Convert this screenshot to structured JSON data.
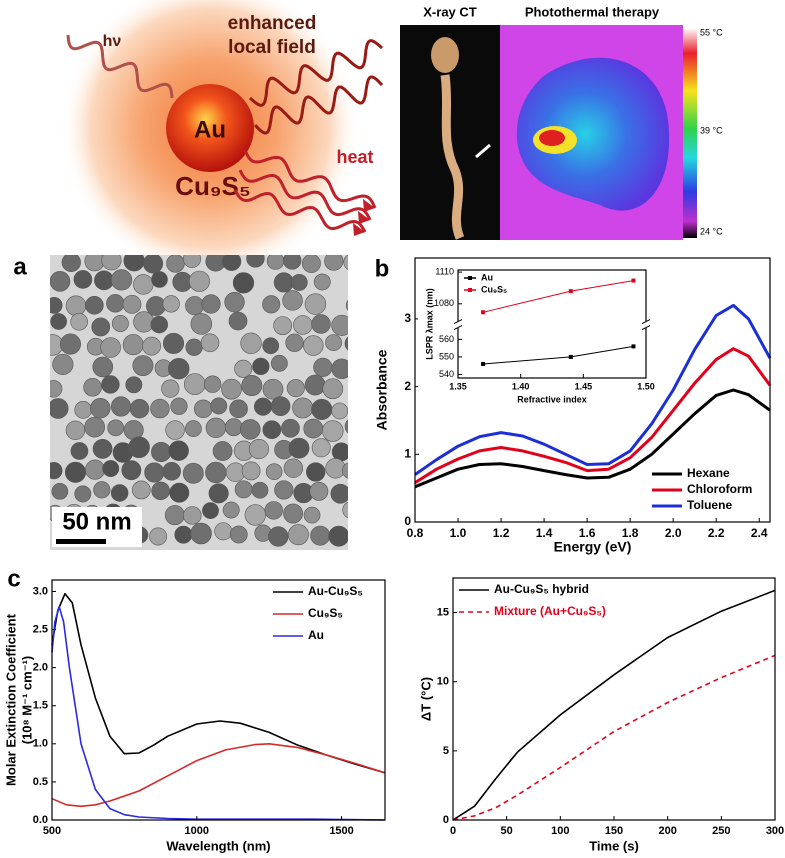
{
  "schematic": {
    "photon": "hν",
    "field_label": [
      "enhanced",
      "local field"
    ],
    "core": "Au",
    "shell": "Cu₉S₅",
    "heat": "heat"
  },
  "imaging": {
    "ct_title": "X-ray CT",
    "ptt_title": "Photothermal therapy",
    "colorbar_labels": [
      "55 °C",
      "39 °C",
      "24 °C"
    ]
  },
  "panel_labels": [
    "a",
    "b",
    "c"
  ],
  "tem_scale_bar": "50 nm",
  "chart_data": [
    {
      "type": "line",
      "x_label": "Energy (eV)",
      "y_label": [
        "Absorbance"
      ],
      "x": [
        0.8,
        0.9,
        1.0,
        1.1,
        1.2,
        1.3,
        1.4,
        1.5,
        1.6,
        1.7,
        1.8,
        1.9,
        2.0,
        2.1,
        2.2,
        2.28,
        2.35,
        2.45
      ],
      "series": [
        {
          "name": "Hexane",
          "color": "#000000",
          "values": [
            0.52,
            0.65,
            0.78,
            0.85,
            0.86,
            0.82,
            0.76,
            0.7,
            0.65,
            0.66,
            0.78,
            1.0,
            1.3,
            1.6,
            1.87,
            1.95,
            1.88,
            1.65
          ]
        },
        {
          "name": "Chloroform",
          "color": "#e3001b",
          "values": [
            0.58,
            0.78,
            0.93,
            1.05,
            1.1,
            1.05,
            0.97,
            0.88,
            0.76,
            0.78,
            0.95,
            1.25,
            1.65,
            2.05,
            2.4,
            2.56,
            2.45,
            2.02
          ]
        },
        {
          "name": "Toluene",
          "color": "#1c2fd6",
          "values": [
            0.7,
            0.92,
            1.12,
            1.26,
            1.32,
            1.27,
            1.15,
            1.0,
            0.85,
            0.86,
            1.05,
            1.45,
            1.95,
            2.55,
            3.05,
            3.2,
            3.0,
            2.42
          ]
        }
      ],
      "xlim": [
        0.8,
        2.45
      ],
      "xticks": [
        0.8,
        {
          "value": 1,
          "label": "1.0"
        },
        1.2,
        1.4,
        1.6,
        1.8,
        {
          "value": 2,
          "label": "2.0"
        },
        2.2,
        2.4
      ],
      "ylim": [
        0,
        3.9
      ],
      "yticks": [
        0,
        1,
        2,
        3
      ],
      "legend": "lower right",
      "line_width": 3
    },
    {
      "type": "line",
      "x_label": "Refractive index",
      "y_label": [
        "LSPR λmax (nm)"
      ],
      "markers": true,
      "x": [
        1.37,
        1.44,
        1.49
      ],
      "series": [
        {
          "name": "Au",
          "color": "#000000",
          "values": [
            546,
            550,
            556
          ]
        },
        {
          "name": "Cu₉S₅",
          "color": "#e3001b",
          "values": [
            1072,
            1092,
            1102
          ]
        }
      ],
      "xlim": [
        1.35,
        1.5
      ],
      "xticks": [
        1.35,
        {
          "value": 1.4,
          "label": "1.40"
        },
        1.45,
        {
          "value": 1.5,
          "label": "1.50"
        }
      ],
      "ylim": [
        538,
        1112
      ],
      "y_break": [
        565,
        1066
      ],
      "yticks": [
        540,
        550,
        560,
        1080,
        1110
      ],
      "legend": "upper left",
      "line_width": 1
    },
    {
      "type": "line",
      "x_label": "Wavelength (nm)",
      "y_label": [
        "Molar Extinction Coefficient",
        "(10⁸ M⁻¹ cm⁻¹)"
      ],
      "series": [
        {
          "name": "Au-Cu₉S₅",
          "color": "#000000",
          "x": [
            500,
            520,
            545,
            570,
            600,
            650,
            700,
            750,
            800,
            850,
            900,
            1000,
            1080,
            1150,
            1250,
            1350,
            1450,
            1550,
            1650
          ],
          "values": [
            2.3,
            2.75,
            2.97,
            2.85,
            2.3,
            1.6,
            1.1,
            0.87,
            0.88,
            0.98,
            1.1,
            1.26,
            1.3,
            1.27,
            1.15,
            0.98,
            0.85,
            0.73,
            0.62
          ]
        },
        {
          "name": "Cu₉S₅",
          "color": "#d42a2a",
          "x": [
            500,
            550,
            600,
            650,
            700,
            800,
            900,
            1000,
            1100,
            1200,
            1250,
            1350,
            1450,
            1550,
            1650
          ],
          "values": [
            0.28,
            0.2,
            0.18,
            0.2,
            0.25,
            0.38,
            0.58,
            0.78,
            0.92,
            0.99,
            1.0,
            0.95,
            0.85,
            0.74,
            0.62
          ]
        },
        {
          "name": "Au",
          "color": "#2a2ae0",
          "x": [
            500,
            510,
            525,
            540,
            560,
            600,
            650,
            700,
            750,
            800,
            900,
            1000,
            1200,
            1400,
            1650
          ],
          "values": [
            2.2,
            2.6,
            2.8,
            2.6,
            2.0,
            1.0,
            0.4,
            0.15,
            0.07,
            0.04,
            0.02,
            0.01,
            0.01,
            0.01,
            0
          ]
        }
      ],
      "xlim": [
        500,
        1650
      ],
      "xticks": [
        500,
        1000,
        1500
      ],
      "ylim": [
        0,
        3.15
      ],
      "yticks": [
        {
          "value": 0,
          "label": "0.0"
        },
        0.5,
        {
          "value": 1,
          "label": "1.0"
        },
        1.5,
        {
          "value": 2,
          "label": "2.0"
        },
        2.5,
        {
          "value": 3,
          "label": "3.0"
        }
      ],
      "legend": "upper right",
      "line_width": 1.6
    },
    {
      "type": "line",
      "x_label": "Time (s)",
      "y_label": [
        "ΔT (°C)"
      ],
      "x": [
        0,
        20,
        40,
        60,
        100,
        150,
        200,
        250,
        300
      ],
      "series": [
        {
          "name": "Au-Cu₉S₅ hybrid",
          "color": "#000000",
          "values": [
            0,
            1,
            3,
            4.9,
            7.6,
            10.5,
            13.2,
            15.1,
            16.6
          ]
        },
        {
          "name": "Mixture (Au+Cu₉S₅)",
          "color": "#e3001b",
          "line_style": "dashed",
          "values": [
            0,
            0.3,
            0.9,
            1.8,
            3.8,
            6.4,
            8.5,
            10.3,
            11.9
          ]
        }
      ],
      "xlim": [
        0,
        300
      ],
      "xticks": [
        0,
        50,
        100,
        150,
        200,
        250,
        300
      ],
      "ylim": [
        0,
        17.5
      ],
      "yticks": [
        0,
        5,
        10,
        15
      ],
      "legend": "upper left",
      "line_width": 1.6
    }
  ]
}
